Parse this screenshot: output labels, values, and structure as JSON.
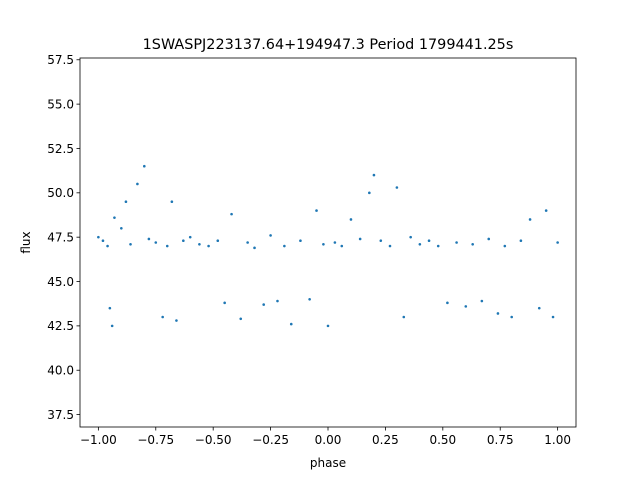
{
  "chart_data": {
    "type": "scatter",
    "title": "1SWASPJ223137.64+194947.3 Period 1799441.25s",
    "xlabel": "phase",
    "ylabel": "flux",
    "xlim": [
      -1.08,
      1.08
    ],
    "ylim": [
      36.8,
      57.6
    ],
    "xticks": [
      -1.0,
      -0.75,
      -0.5,
      -0.25,
      0.0,
      0.25,
      0.5,
      0.75,
      1.0
    ],
    "xtick_labels": [
      "−1.00",
      "−0.75",
      "−0.50",
      "−0.25",
      "0.00",
      "0.25",
      "0.50",
      "0.75",
      "1.00"
    ],
    "yticks": [
      37.5,
      40.0,
      42.5,
      45.0,
      47.5,
      50.0,
      52.5,
      55.0,
      57.5
    ],
    "ytick_labels": [
      "37.5",
      "40.0",
      "42.5",
      "45.0",
      "47.5",
      "50.0",
      "52.5",
      "55.0",
      "57.5"
    ],
    "grid": false,
    "marker_color": "#1f77b4",
    "series": [
      {
        "points": [
          [
            -1.0,
            47.5
          ],
          [
            -0.98,
            47.3
          ],
          [
            -0.96,
            47.0
          ],
          [
            -0.95,
            43.5
          ],
          [
            -0.94,
            42.5
          ],
          [
            -0.93,
            48.6
          ],
          [
            -0.9,
            48.0
          ],
          [
            -0.88,
            49.5
          ],
          [
            -0.86,
            47.1
          ],
          [
            -0.83,
            50.5
          ],
          [
            -0.8,
            51.5
          ],
          [
            -0.78,
            47.4
          ],
          [
            -0.75,
            47.2
          ],
          [
            -0.72,
            43.0
          ],
          [
            -0.7,
            47.0
          ],
          [
            -0.68,
            49.5
          ],
          [
            -0.66,
            42.8
          ],
          [
            -0.63,
            47.3
          ],
          [
            -0.6,
            47.5
          ],
          [
            -0.56,
            47.1
          ],
          [
            -0.52,
            47.0
          ],
          [
            -0.48,
            47.3
          ],
          [
            -0.45,
            43.8
          ],
          [
            -0.42,
            48.8
          ],
          [
            -0.38,
            42.9
          ],
          [
            -0.35,
            47.2
          ],
          [
            -0.32,
            46.9
          ],
          [
            -0.28,
            43.7
          ],
          [
            -0.25,
            47.6
          ],
          [
            -0.22,
            43.9
          ],
          [
            -0.19,
            47.0
          ],
          [
            -0.16,
            42.6
          ],
          [
            -0.12,
            47.3
          ],
          [
            -0.08,
            44.0
          ],
          [
            -0.05,
            49.0
          ],
          [
            -0.02,
            47.1
          ],
          [
            0.0,
            42.5
          ],
          [
            0.03,
            47.2
          ],
          [
            0.06,
            47.0
          ],
          [
            0.1,
            48.5
          ],
          [
            0.14,
            47.4
          ],
          [
            0.18,
            50.0
          ],
          [
            0.2,
            51.0
          ],
          [
            0.23,
            47.3
          ],
          [
            0.27,
            47.0
          ],
          [
            0.3,
            50.3
          ],
          [
            0.33,
            43.0
          ],
          [
            0.36,
            47.5
          ],
          [
            0.4,
            47.1
          ],
          [
            0.44,
            47.3
          ],
          [
            0.48,
            47.0
          ],
          [
            0.52,
            43.8
          ],
          [
            0.56,
            47.2
          ],
          [
            0.6,
            43.6
          ],
          [
            0.63,
            47.1
          ],
          [
            0.67,
            43.9
          ],
          [
            0.7,
            47.4
          ],
          [
            0.74,
            43.2
          ],
          [
            0.77,
            47.0
          ],
          [
            0.8,
            43.0
          ],
          [
            0.84,
            47.3
          ],
          [
            0.88,
            48.5
          ],
          [
            0.92,
            43.5
          ],
          [
            0.95,
            49.0
          ],
          [
            0.98,
            43.0
          ],
          [
            1.0,
            47.2
          ]
        ]
      }
    ]
  }
}
